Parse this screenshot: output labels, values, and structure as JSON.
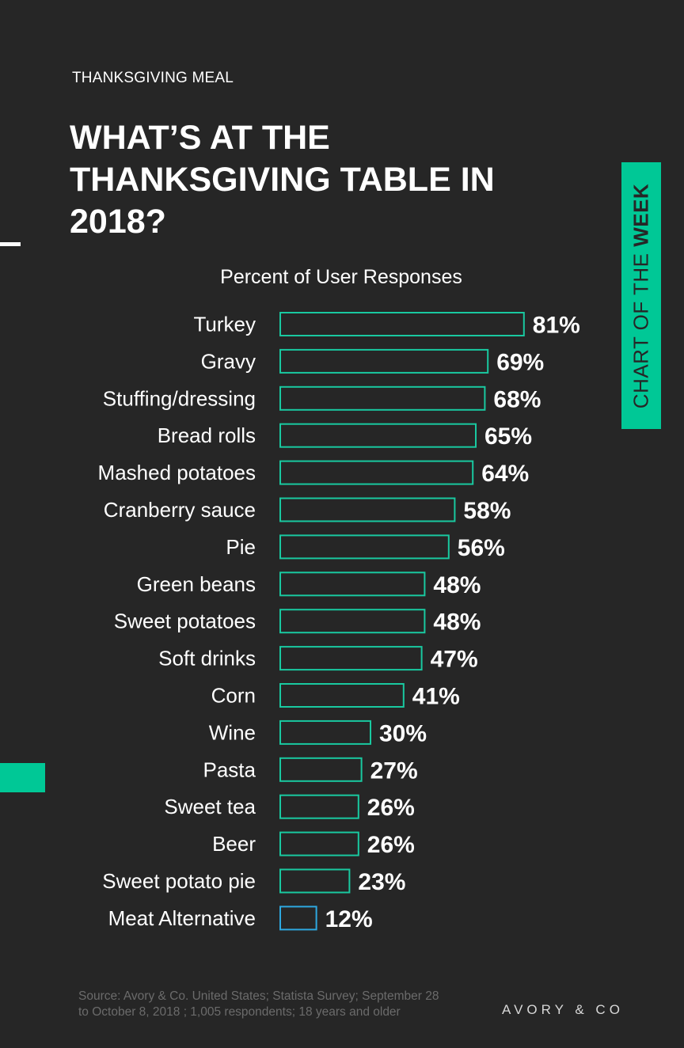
{
  "header": {
    "kicker": "THANKSGIVING MEAL",
    "title": "WHAT’S AT THE THANKSGIVING TABLE IN 2018?"
  },
  "tag": {
    "prefix": "CHART OF THE ",
    "emphasis": "WEEK"
  },
  "colors": {
    "background": "#262626",
    "accent": "#00c896",
    "bar_outline": "#19c9a0",
    "highlight_outline": "#2ea8e0",
    "text": "#ffffff"
  },
  "chart_data": {
    "type": "bar",
    "orientation": "horizontal",
    "title": "Percent of User Responses",
    "categories": [
      "Turkey",
      "Gravy",
      "Stuffing/dressing",
      "Bread rolls",
      "Mashed potatoes",
      "Cranberry sauce",
      "Pie",
      "Green beans",
      "Sweet potatoes",
      "Soft drinks",
      "Corn",
      "Wine",
      "Pasta",
      "Sweet tea",
      "Beer",
      "Sweet potato pie",
      "Meat Alternative"
    ],
    "values": [
      81,
      69,
      68,
      65,
      64,
      58,
      56,
      48,
      48,
      47,
      41,
      30,
      27,
      26,
      26,
      23,
      12
    ],
    "value_labels": [
      "81%",
      "69%",
      "68%",
      "65%",
      "64%",
      "58%",
      "56%",
      "48%",
      "48%",
      "47%",
      "41%",
      "30%",
      "27%",
      "26%",
      "26%",
      "23%",
      "12%"
    ],
    "highlight_category": "Meat Alternative",
    "xlim": [
      0,
      100
    ],
    "grid": false,
    "legend": "none"
  },
  "footer": {
    "source": "Source: Avory & Co. United States; Statista Survey; September 28 to October 8, 2018 ; 1,005 respondents; 18 years and older",
    "brand": "AVORY & CO"
  }
}
